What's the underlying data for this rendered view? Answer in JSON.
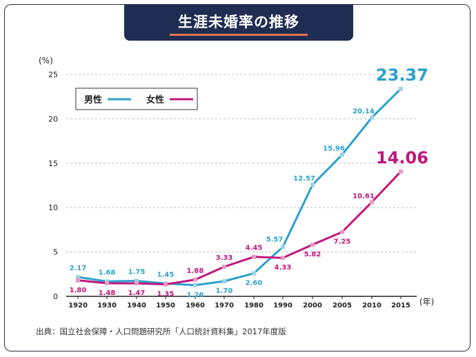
{
  "title": "生涯未婚率の推移",
  "source": "出典：国立社会保障・人口問題研究所「人口統計資料集」2017年度版",
  "colors": {
    "male": "#2aa0cc",
    "female": "#c0157d",
    "banner": "#1f2d52",
    "accent": "#e8734a"
  },
  "chart_data": {
    "type": "line",
    "title": "生涯未婚率の推移",
    "y_unit": "(%)",
    "x_unit": "(年)",
    "ylim": [
      0,
      25
    ],
    "y_ticks": [
      "0",
      "5",
      "10",
      "15",
      "20",
      "25"
    ],
    "grid": true,
    "legend_position": "top-left",
    "categories": [
      "1920",
      "1930",
      "1940",
      "1950",
      "1960",
      "1970",
      "1980",
      "1990",
      "2000",
      "2005",
      "2010",
      "2015"
    ],
    "series": [
      {
        "name": "男性",
        "values": [
          2.17,
          1.68,
          1.75,
          1.45,
          1.26,
          1.7,
          2.6,
          5.57,
          12.57,
          15.96,
          20.14,
          23.37
        ],
        "labels": [
          "2.17",
          "1.68",
          "1.75",
          "1.45",
          "1.26",
          "1.70",
          "2.60",
          "5.57",
          "12.57",
          "15.96",
          "20.14",
          "23.37"
        ]
      },
      {
        "name": "女性",
        "values": [
          1.8,
          1.48,
          1.47,
          1.35,
          1.88,
          3.33,
          4.45,
          4.33,
          5.82,
          7.25,
          10.61,
          14.06
        ],
        "labels": [
          "1.80",
          "1.48",
          "1.47",
          "1.35",
          "1.88",
          "3.33",
          "4.45",
          "4.33",
          "5.82",
          "7.25",
          "10.61",
          "14.06"
        ]
      }
    ]
  }
}
